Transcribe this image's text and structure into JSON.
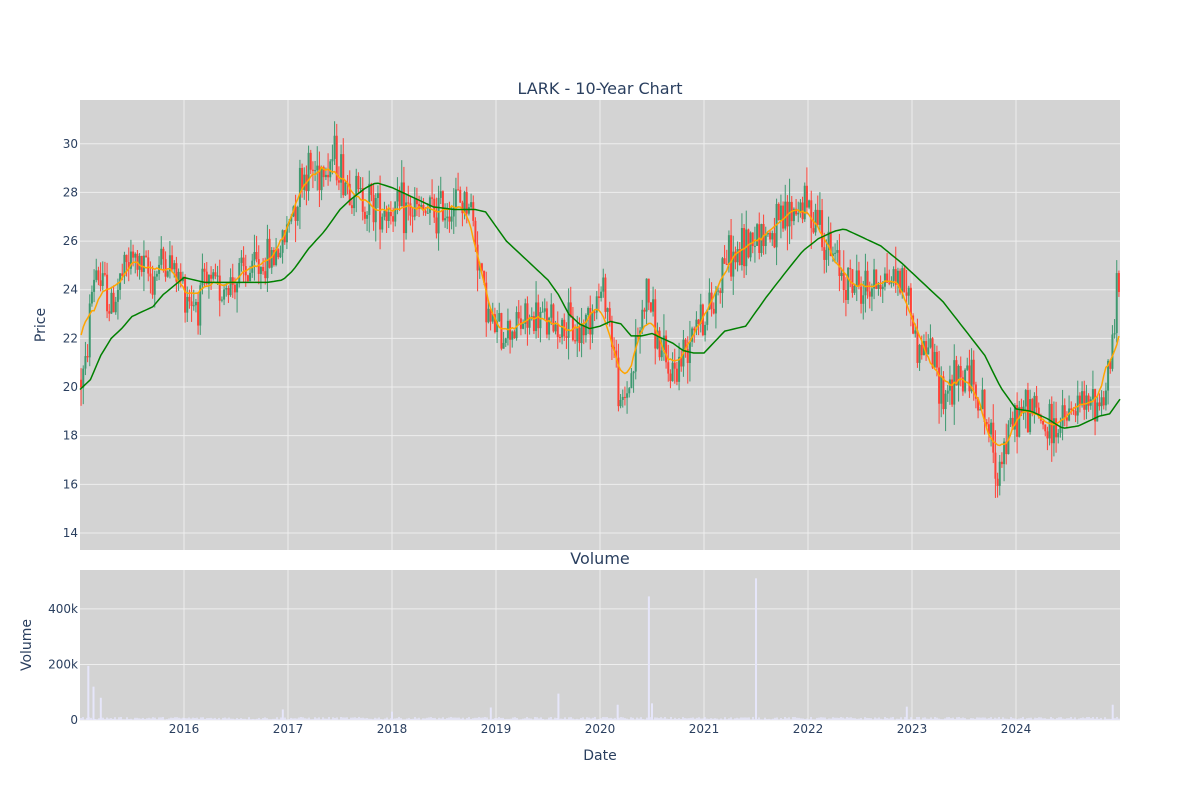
{
  "chart_data": {
    "type": "candlestick",
    "title": "LARK - 10-Year Chart",
    "colors": {
      "background": "#d3d3d3",
      "grid": "#eeeeee",
      "up": "#3d9970",
      "down": "#ff4136",
      "ma_short": "#ffa500",
      "ma_long": "#008000",
      "volume": "#e6e6fa",
      "text": "#2a3f5f"
    },
    "price_panel": {
      "ylabel": "Price",
      "ylim": [
        13.3,
        31.8
      ],
      "yticks": [
        14,
        16,
        18,
        20,
        22,
        24,
        26,
        28,
        30
      ]
    },
    "volume_panel": {
      "title": "Volume",
      "ylabel": "Volume",
      "ylim": [
        0,
        540000
      ],
      "yticks": [
        0,
        200000,
        400000
      ],
      "ytick_labels": [
        "0",
        "200k",
        "400k"
      ]
    },
    "xaxis": {
      "xlabel": "Date",
      "xlim": [
        2015.0,
        2025.0
      ],
      "ticks": [
        2016,
        2017,
        2018,
        2019,
        2020,
        2021,
        2022,
        2023,
        2024
      ],
      "tick_labels": [
        "2016",
        "2017",
        "2018",
        "2019",
        "2020",
        "2021",
        "2022",
        "2023",
        "2024"
      ]
    },
    "price_trend": {
      "x": [
        2015.0,
        2015.05,
        2015.1,
        2015.15,
        2015.2,
        2015.25,
        2015.3,
        2015.4,
        2015.5,
        2015.6,
        2015.7,
        2015.8,
        2015.9,
        2016.0,
        2016.1,
        2016.2,
        2016.4,
        2016.6,
        2016.8,
        2016.95,
        2017.05,
        2017.15,
        2017.3,
        2017.45,
        2017.55,
        2017.7,
        2017.85,
        2018.0,
        2018.2,
        2018.4,
        2018.6,
        2018.75,
        2018.85,
        2018.95,
        2019.05,
        2019.2,
        2019.4,
        2019.6,
        2019.8,
        2019.95,
        2020.05,
        2020.15,
        2020.2,
        2020.3,
        2020.45,
        2020.55,
        2020.65,
        2020.8,
        2020.9,
        2021.0,
        2021.1,
        2021.2,
        2021.3,
        2021.4,
        2021.5,
        2021.6,
        2021.75,
        2021.9,
        2022.0,
        2022.1,
        2022.2,
        2022.3,
        2022.4,
        2022.55,
        2022.7,
        2022.85,
        2022.95,
        2023.05,
        2023.15,
        2023.3,
        2023.45,
        2023.55,
        2023.65,
        2023.75,
        2023.8,
        2023.9,
        2024.0,
        2024.15,
        2024.3,
        2024.45,
        2024.6,
        2024.75,
        2024.85,
        2024.92,
        2024.97,
        2025.0
      ],
      "y": [
        20.3,
        20.5,
        23.5,
        25.0,
        24.2,
        24.0,
        23.2,
        24.5,
        25.3,
        24.8,
        24.5,
        25.3,
        24.8,
        24.1,
        23.5,
        24.0,
        24.2,
        24.6,
        25.2,
        25.8,
        27.5,
        28.8,
        29.0,
        29.5,
        28.5,
        27.8,
        27.5,
        27.3,
        27.2,
        27.1,
        27.6,
        27.6,
        24.8,
        22.5,
        22.2,
        22.6,
        22.8,
        22.5,
        22.2,
        23.5,
        24.0,
        21.0,
        18.9,
        20.5,
        24.0,
        22.0,
        20.5,
        21.2,
        23.0,
        22.8,
        23.5,
        25.5,
        25.2,
        25.8,
        26.5,
        26.2,
        26.6,
        27.5,
        27.4,
        27.1,
        25.5,
        25.0,
        24.3,
        24.0,
        24.5,
        24.6,
        24.2,
        21.5,
        21.8,
        19.8,
        20.2,
        20.7,
        19.5,
        18.0,
        16.7,
        17.6,
        18.8,
        19.2,
        18.2,
        18.5,
        19.1,
        19.3,
        19.6,
        21.5,
        24.0,
        24.3
      ]
    },
    "ma_long_series": {
      "x": [
        2015.0,
        2015.1,
        2015.2,
        2015.3,
        2015.4,
        2015.5,
        2015.6,
        2015.7,
        2015.8,
        2016.0,
        2016.2,
        2016.4,
        2016.6,
        2016.8,
        2016.95,
        2017.05,
        2017.2,
        2017.35,
        2017.5,
        2017.6,
        2017.75,
        2017.85,
        2018.0,
        2018.2,
        2018.4,
        2018.6,
        2018.8,
        2018.9,
        2019.0,
        2019.1,
        2019.3,
        2019.5,
        2019.6,
        2019.7,
        2019.8,
        2019.9,
        2020.0,
        2020.1,
        2020.2,
        2020.3,
        2020.4,
        2020.5,
        2020.6,
        2020.7,
        2020.8,
        2020.9,
        2021.0,
        2021.2,
        2021.4,
        2021.6,
        2021.8,
        2021.95,
        2022.1,
        2022.25,
        2022.35,
        2022.5,
        2022.7,
        2022.9,
        2023.1,
        2023.3,
        2023.5,
        2023.7,
        2023.85,
        2024.0,
        2024.15,
        2024.3,
        2024.45,
        2024.6,
        2024.8,
        2024.9,
        2025.0
      ],
      "y": [
        19.9,
        20.3,
        21.3,
        22.0,
        22.4,
        22.9,
        23.1,
        23.3,
        23.8,
        24.5,
        24.3,
        24.3,
        24.3,
        24.3,
        24.4,
        24.8,
        25.7,
        26.4,
        27.3,
        27.7,
        28.2,
        28.4,
        28.2,
        27.8,
        27.4,
        27.3,
        27.3,
        27.2,
        26.6,
        26.0,
        25.2,
        24.4,
        23.8,
        23.0,
        22.6,
        22.4,
        22.5,
        22.7,
        22.6,
        22.1,
        22.1,
        22.2,
        22.0,
        21.8,
        21.5,
        21.4,
        21.4,
        22.3,
        22.5,
        23.7,
        24.8,
        25.6,
        26.1,
        26.4,
        26.5,
        26.2,
        25.8,
        25.1,
        24.3,
        23.5,
        22.4,
        21.3,
        20.0,
        19.1,
        19.0,
        18.7,
        18.3,
        18.4,
        18.8,
        18.9,
        19.5
      ]
    },
    "volume_spikes": {
      "x": [
        2015.08,
        2015.13,
        2015.2,
        2016.95,
        2018.0,
        2018.95,
        2019.6,
        2020.17,
        2020.47,
        2020.5,
        2021.5,
        2022.95,
        2024.93
      ],
      "v": [
        195000,
        120000,
        80000,
        38000,
        30000,
        45000,
        95000,
        55000,
        445000,
        60000,
        510000,
        48000,
        55000
      ]
    }
  }
}
